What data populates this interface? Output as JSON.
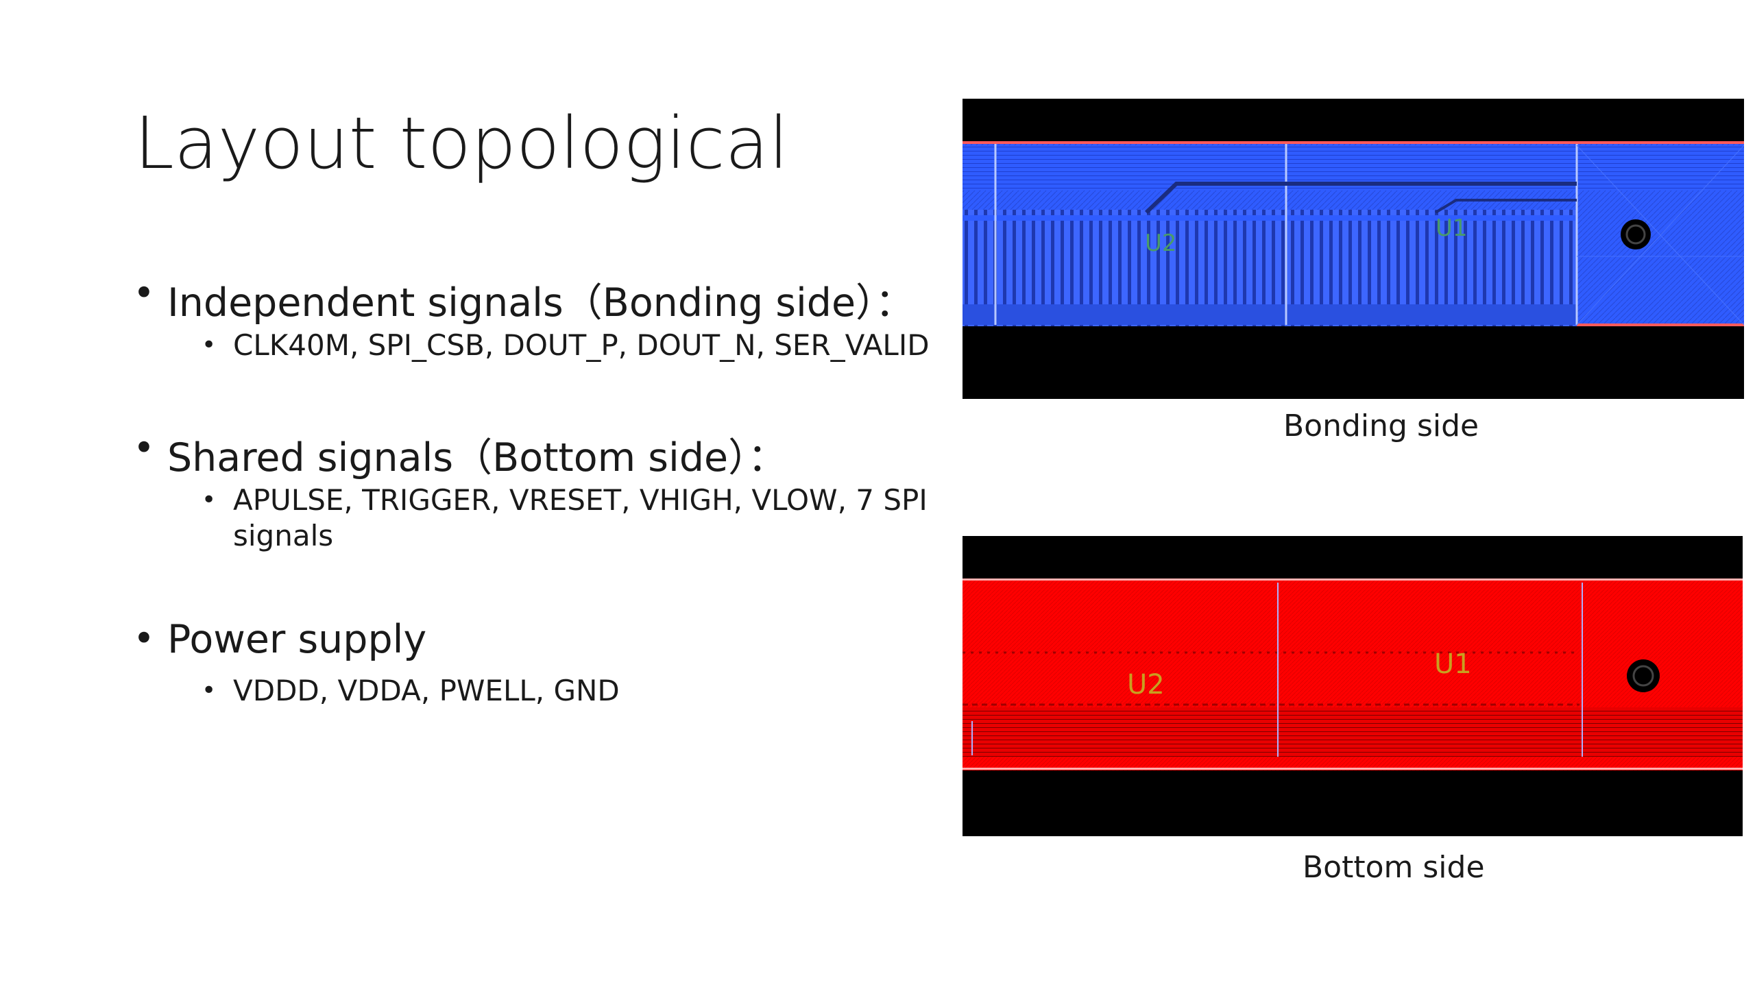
{
  "slide": {
    "title": "Layout topological",
    "bullets": [
      {
        "label": "Independent signals（Bonding side）：",
        "sub": [
          "CLK40M, SPI_CSB, DOUT_P, DOUT_N, SER_VALID"
        ]
      },
      {
        "label": "Shared signals（Bottom side）：",
        "sub": [
          "APULSE, TRIGGER, VRESET, VHIGH, VLOW, 7 SPI signals"
        ]
      },
      {
        "label": "Power supply",
        "sub": [
          "VDDD, VDDA, PWELL, GND"
        ]
      }
    ],
    "figures": {
      "top": {
        "caption": "Bonding side",
        "labels": [
          "U2",
          "U1"
        ],
        "color": "#2f5cff"
      },
      "bottom": {
        "caption": "Bottom side",
        "labels": [
          "U2",
          "U1"
        ],
        "color": "#ff0000"
      }
    }
  }
}
